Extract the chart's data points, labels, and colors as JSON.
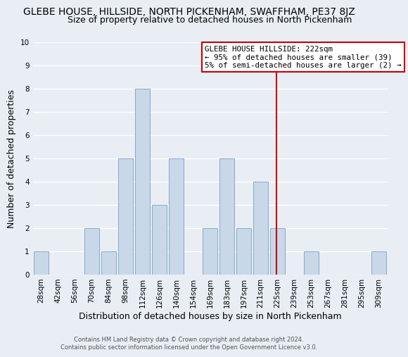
{
  "title": "GLEBE HOUSE, HILLSIDE, NORTH PICKENHAM, SWAFFHAM, PE37 8JZ",
  "subtitle": "Size of property relative to detached houses in North Pickenham",
  "xlabel": "Distribution of detached houses by size in North Pickenham",
  "ylabel": "Number of detached properties",
  "footer_line1": "Contains HM Land Registry data © Crown copyright and database right 2024.",
  "footer_line2": "Contains public sector information licensed under the Open Government Licence v3.0.",
  "bin_labels": [
    "28sqm",
    "42sqm",
    "56sqm",
    "70sqm",
    "84sqm",
    "98sqm",
    "112sqm",
    "126sqm",
    "140sqm",
    "154sqm",
    "169sqm",
    "183sqm",
    "197sqm",
    "211sqm",
    "225sqm",
    "239sqm",
    "253sqm",
    "267sqm",
    "281sqm",
    "295sqm",
    "309sqm"
  ],
  "bar_heights": [
    1,
    0,
    0,
    2,
    1,
    5,
    8,
    3,
    5,
    0,
    2,
    5,
    2,
    4,
    2,
    0,
    1,
    0,
    0,
    0,
    1
  ],
  "bar_color": "#c8d8e8",
  "bar_edge_color": "#7aa0c0",
  "vline_x": 13.93,
  "vline_color": "#cc0000",
  "annotation_title": "GLEBE HOUSE HILLSIDE: 222sqm",
  "annotation_line1": "← 95% of detached houses are smaller (39)",
  "annotation_line2": "5% of semi-detached houses are larger (2) →",
  "annotation_box_color": "#ffffff",
  "annotation_box_edge": "#cc0000",
  "ylim": [
    0,
    10
  ],
  "yticks": [
    0,
    1,
    2,
    3,
    4,
    5,
    6,
    7,
    8,
    9,
    10
  ],
  "background_color": "#e8eef4",
  "grid_color": "#ffffff",
  "title_fontsize": 10,
  "subtitle_fontsize": 9,
  "ylabel_fontsize": 9,
  "xlabel_fontsize": 9,
  "tick_fontsize": 7.5,
  "annotation_fontsize": 7.8
}
